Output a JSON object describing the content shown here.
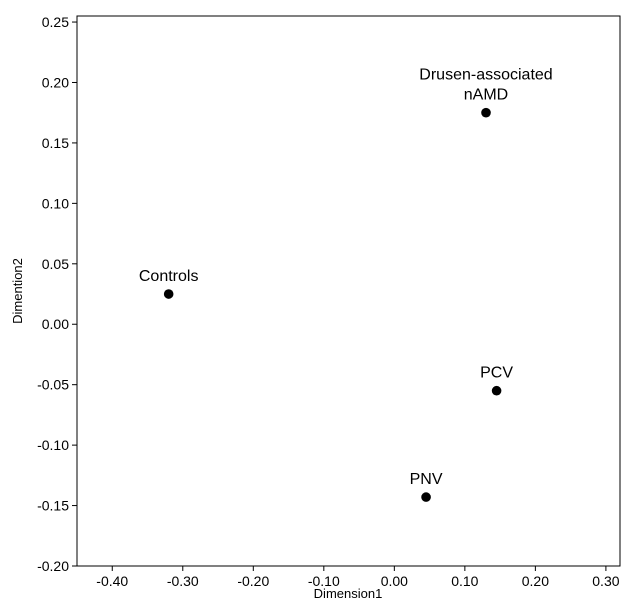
{
  "chart_data": {
    "type": "scatter",
    "xlabel": "Dimension1",
    "ylabel": "Dimention2",
    "xlim": [
      -0.45,
      0.32
    ],
    "ylim": [
      -0.2,
      0.255
    ],
    "xticks": [
      "-0.40",
      "-0.30",
      "-0.20",
      "-0.10",
      "0.00",
      "0.10",
      "0.20",
      "0.30"
    ],
    "yticks": [
      "-0.20",
      "-0.15",
      "-0.10",
      "-0.05",
      "0.00",
      "0.05",
      "0.10",
      "0.15",
      "0.20",
      "0.25"
    ],
    "grid": false,
    "points": [
      {
        "label_lines": [
          "Controls"
        ],
        "x": -0.32,
        "y": 0.025
      },
      {
        "label_lines": [
          "Drusen-associated",
          "nAMD"
        ],
        "x": 0.13,
        "y": 0.175
      },
      {
        "label_lines": [
          "PCV"
        ],
        "x": 0.145,
        "y": -0.055
      },
      {
        "label_lines": [
          "PNV"
        ],
        "x": 0.045,
        "y": -0.143
      }
    ]
  }
}
